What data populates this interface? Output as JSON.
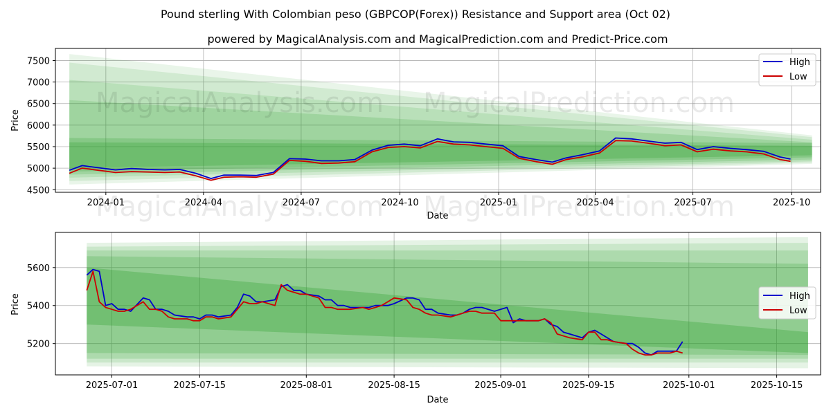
{
  "title": "Pound sterling With Colombian peso (GBPCOP(Forex)) Resistance and Support area (Oct 02)",
  "subtitle": "powered by MagicalAnalysis.com and MagicalPrediction.com and Predict-Price.com",
  "watermarks": [
    "MagicalAnalysis.com",
    "MagicalPrediction.com"
  ],
  "colors": {
    "high": "#0000cc",
    "low": "#cc0000",
    "band": "#2ca02c",
    "grid": "#b0b0b0"
  },
  "chart_data": [
    {
      "type": "line",
      "xlabel": "Date",
      "ylabel": "Price",
      "legend": [
        "High",
        "Low"
      ],
      "legend_position": "top-right",
      "grid": true,
      "xlim": [
        "2023-11-15",
        "2025-10-28"
      ],
      "ylim": [
        4440,
        7780
      ],
      "yticks": [
        4500,
        5000,
        5500,
        6000,
        6500,
        7000,
        7500
      ],
      "xticks": [
        {
          "date": "2024-01-01",
          "label": "2024-01"
        },
        {
          "date": "2024-04-01",
          "label": "2024-04"
        },
        {
          "date": "2024-07-01",
          "label": "2024-07"
        },
        {
          "date": "2024-10-01",
          "label": "2024-10"
        },
        {
          "date": "2025-01-01",
          "label": "2025-01"
        },
        {
          "date": "2025-04-01",
          "label": "2025-04"
        },
        {
          "date": "2025-07-01",
          "label": "2025-07"
        },
        {
          "date": "2025-10-01",
          "label": "2025-10"
        }
      ],
      "bands": [
        {
          "x": [
            "2023-11-28",
            "2025-10-20"
          ],
          "upper": [
            7650,
            5760
          ],
          "lower": [
            4620,
            5100
          ],
          "opacity": 0.1
        },
        {
          "x": [
            "2023-11-28",
            "2025-10-20"
          ],
          "upper": [
            7450,
            5720
          ],
          "lower": [
            4700,
            5130
          ],
          "opacity": 0.12
        },
        {
          "x": [
            "2023-11-28",
            "2025-10-20"
          ],
          "upper": [
            7050,
            5660
          ],
          "lower": [
            4780,
            5160
          ],
          "opacity": 0.14
        },
        {
          "x": [
            "2023-11-28",
            "2025-10-20"
          ],
          "upper": [
            6580,
            5600
          ],
          "lower": [
            4850,
            5200
          ],
          "opacity": 0.18
        },
        {
          "x": [
            "2023-11-28",
            "2025-10-20"
          ],
          "upper": [
            5700,
            5580
          ],
          "lower": [
            4920,
            5250
          ],
          "opacity": 0.22
        },
        {
          "x": [
            "2023-11-28",
            "2025-10-20"
          ],
          "upper": [
            5600,
            5520
          ],
          "lower": [
            5000,
            5300
          ],
          "opacity": 0.26
        }
      ],
      "series": [
        {
          "name": "High",
          "x": [
            "2023-11-28",
            "2023-12-10",
            "2023-12-25",
            "2024-01-10",
            "2024-01-25",
            "2024-02-10",
            "2024-02-25",
            "2024-03-10",
            "2024-03-25",
            "2024-04-08",
            "2024-04-20",
            "2024-05-05",
            "2024-05-20",
            "2024-06-05",
            "2024-06-20",
            "2024-07-05",
            "2024-07-20",
            "2024-08-05",
            "2024-08-20",
            "2024-09-05",
            "2024-09-20",
            "2024-10-05",
            "2024-10-20",
            "2024-11-05",
            "2024-11-20",
            "2024-12-05",
            "2024-12-20",
            "2025-01-05",
            "2025-01-20",
            "2025-02-05",
            "2025-02-20",
            "2025-03-05",
            "2025-03-20",
            "2025-04-05",
            "2025-04-20",
            "2025-05-05",
            "2025-05-20",
            "2025-06-05",
            "2025-06-20",
            "2025-07-05",
            "2025-07-20",
            "2025-08-05",
            "2025-08-20",
            "2025-09-05",
            "2025-09-20",
            "2025-09-30"
          ],
          "values": [
            4950,
            5060,
            5010,
            4960,
            4990,
            4970,
            4960,
            4970,
            4880,
            4760,
            4840,
            4840,
            4830,
            4900,
            5220,
            5210,
            5170,
            5170,
            5200,
            5420,
            5530,
            5560,
            5520,
            5680,
            5610,
            5600,
            5560,
            5520,
            5270,
            5200,
            5140,
            5240,
            5310,
            5400,
            5700,
            5680,
            5630,
            5580,
            5600,
            5430,
            5500,
            5460,
            5430,
            5390,
            5260,
            5210
          ]
        },
        {
          "name": "Low",
          "x": [
            "2023-11-28",
            "2023-12-10",
            "2023-12-25",
            "2024-01-10",
            "2024-01-25",
            "2024-02-10",
            "2024-02-25",
            "2024-03-10",
            "2024-03-25",
            "2024-04-08",
            "2024-04-20",
            "2024-05-05",
            "2024-05-20",
            "2024-06-05",
            "2024-06-20",
            "2024-07-05",
            "2024-07-20",
            "2024-08-05",
            "2024-08-20",
            "2024-09-05",
            "2024-09-20",
            "2024-10-05",
            "2024-10-20",
            "2024-11-05",
            "2024-11-20",
            "2024-12-05",
            "2024-12-20",
            "2025-01-05",
            "2025-01-20",
            "2025-02-05",
            "2025-02-20",
            "2025-03-05",
            "2025-03-20",
            "2025-04-05",
            "2025-04-20",
            "2025-05-05",
            "2025-05-20",
            "2025-06-05",
            "2025-06-20",
            "2025-07-05",
            "2025-07-20",
            "2025-08-05",
            "2025-08-20",
            "2025-09-05",
            "2025-09-20",
            "2025-09-30"
          ],
          "values": [
            4880,
            5000,
            4950,
            4900,
            4920,
            4910,
            4900,
            4910,
            4820,
            4720,
            4790,
            4800,
            4790,
            4860,
            5180,
            5160,
            5110,
            5120,
            5150,
            5380,
            5480,
            5500,
            5470,
            5620,
            5560,
            5540,
            5500,
            5460,
            5230,
            5150,
            5090,
            5200,
            5260,
            5350,
            5640,
            5630,
            5580,
            5520,
            5540,
            5380,
            5440,
            5400,
            5380,
            5330,
            5200,
            5160
          ]
        }
      ]
    },
    {
      "type": "line",
      "xlabel": "Date",
      "ylabel": "Price",
      "legend": [
        "High",
        "Low"
      ],
      "legend_position": "center-right",
      "grid": true,
      "xlim": [
        "2025-06-22",
        "2025-10-22"
      ],
      "ylim": [
        5035,
        5785
      ],
      "yticks": [
        5200,
        5400,
        5600
      ],
      "xticks": [
        {
          "date": "2025-07-01",
          "label": "2025-07-01"
        },
        {
          "date": "2025-07-15",
          "label": "2025-07-15"
        },
        {
          "date": "2025-08-01",
          "label": "2025-08-01"
        },
        {
          "date": "2025-08-15",
          "label": "2025-08-15"
        },
        {
          "date": "2025-09-01",
          "label": "2025-09-01"
        },
        {
          "date": "2025-09-15",
          "label": "2025-09-15"
        },
        {
          "date": "2025-10-01",
          "label": "2025-10-01"
        },
        {
          "date": "2025-10-15",
          "label": "2025-10-15"
        }
      ],
      "bands": [
        {
          "x": [
            "2025-06-27",
            "2025-10-20"
          ],
          "upper": [
            5730,
            5760
          ],
          "lower": [
            5080,
            5070
          ],
          "opacity": 0.12
        },
        {
          "x": [
            "2025-06-27",
            "2025-10-20"
          ],
          "upper": [
            5710,
            5730
          ],
          "lower": [
            5100,
            5100
          ],
          "opacity": 0.14
        },
        {
          "x": [
            "2025-06-27",
            "2025-10-20"
          ],
          "upper": [
            5690,
            5690
          ],
          "lower": [
            5120,
            5120
          ],
          "opacity": 0.18
        },
        {
          "x": [
            "2025-06-27",
            "2025-10-20"
          ],
          "upper": [
            5660,
            5620
          ],
          "lower": [
            5150,
            5140
          ],
          "opacity": 0.22
        },
        {
          "x": [
            "2025-06-27",
            "2025-10-20"
          ],
          "upper": [
            5600,
            5260
          ],
          "lower": [
            5300,
            5150
          ],
          "opacity": 0.3
        }
      ],
      "series": [
        {
          "name": "High",
          "x": [
            "2025-06-27",
            "2025-06-28",
            "2025-06-29",
            "2025-06-30",
            "2025-07-01",
            "2025-07-02",
            "2025-07-03",
            "2025-07-04",
            "2025-07-06",
            "2025-07-07",
            "2025-07-08",
            "2025-07-09",
            "2025-07-10",
            "2025-07-11",
            "2025-07-13",
            "2025-07-14",
            "2025-07-15",
            "2025-07-16",
            "2025-07-17",
            "2025-07-18",
            "2025-07-20",
            "2025-07-21",
            "2025-07-22",
            "2025-07-23",
            "2025-07-24",
            "2025-07-25",
            "2025-07-27",
            "2025-07-28",
            "2025-07-29",
            "2025-07-30",
            "2025-07-31",
            "2025-08-01",
            "2025-08-03",
            "2025-08-04",
            "2025-08-05",
            "2025-08-06",
            "2025-08-07",
            "2025-08-08",
            "2025-08-10",
            "2025-08-11",
            "2025-08-12",
            "2025-08-13",
            "2025-08-14",
            "2025-08-15",
            "2025-08-17",
            "2025-08-18",
            "2025-08-19",
            "2025-08-20",
            "2025-08-21",
            "2025-08-22",
            "2025-08-24",
            "2025-08-25",
            "2025-08-26",
            "2025-08-27",
            "2025-08-28",
            "2025-08-29",
            "2025-08-31",
            "2025-09-01",
            "2025-09-02",
            "2025-09-03",
            "2025-09-04",
            "2025-09-05",
            "2025-09-07",
            "2025-09-08",
            "2025-09-09",
            "2025-09-10",
            "2025-09-11",
            "2025-09-12",
            "2025-09-14",
            "2025-09-15",
            "2025-09-16",
            "2025-09-17",
            "2025-09-18",
            "2025-09-19",
            "2025-09-21",
            "2025-09-22",
            "2025-09-23",
            "2025-09-24",
            "2025-09-25",
            "2025-09-26",
            "2025-09-28",
            "2025-09-29",
            "2025-09-30"
          ],
          "values": [
            5560,
            5590,
            5580,
            5400,
            5410,
            5380,
            5380,
            5370,
            5440,
            5430,
            5380,
            5380,
            5370,
            5350,
            5340,
            5340,
            5330,
            5350,
            5350,
            5340,
            5350,
            5390,
            5460,
            5450,
            5420,
            5420,
            5430,
            5500,
            5510,
            5480,
            5480,
            5460,
            5450,
            5430,
            5430,
            5400,
            5400,
            5390,
            5390,
            5390,
            5400,
            5400,
            5400,
            5410,
            5440,
            5440,
            5430,
            5380,
            5380,
            5360,
            5350,
            5350,
            5360,
            5380,
            5390,
            5390,
            5370,
            5380,
            5390,
            5310,
            5330,
            5320,
            5320,
            5330,
            5300,
            5290,
            5260,
            5250,
            5230,
            5260,
            5270,
            5250,
            5230,
            5210,
            5200,
            5200,
            5180,
            5150,
            5140,
            5160,
            5160,
            5160,
            5210
          ]
        },
        {
          "name": "Low",
          "x": [
            "2025-06-27",
            "2025-06-28",
            "2025-06-29",
            "2025-06-30",
            "2025-07-01",
            "2025-07-02",
            "2025-07-03",
            "2025-07-04",
            "2025-07-06",
            "2025-07-07",
            "2025-07-08",
            "2025-07-09",
            "2025-07-10",
            "2025-07-11",
            "2025-07-13",
            "2025-07-14",
            "2025-07-15",
            "2025-07-16",
            "2025-07-17",
            "2025-07-18",
            "2025-07-20",
            "2025-07-21",
            "2025-07-22",
            "2025-07-23",
            "2025-07-24",
            "2025-07-25",
            "2025-07-27",
            "2025-07-28",
            "2025-07-29",
            "2025-07-30",
            "2025-07-31",
            "2025-08-01",
            "2025-08-03",
            "2025-08-04",
            "2025-08-05",
            "2025-08-06",
            "2025-08-07",
            "2025-08-08",
            "2025-08-10",
            "2025-08-11",
            "2025-08-12",
            "2025-08-13",
            "2025-08-14",
            "2025-08-15",
            "2025-08-17",
            "2025-08-18",
            "2025-08-19",
            "2025-08-20",
            "2025-08-21",
            "2025-08-22",
            "2025-08-24",
            "2025-08-25",
            "2025-08-26",
            "2025-08-27",
            "2025-08-28",
            "2025-08-29",
            "2025-08-31",
            "2025-09-01",
            "2025-09-02",
            "2025-09-03",
            "2025-09-04",
            "2025-09-05",
            "2025-09-07",
            "2025-09-08",
            "2025-09-09",
            "2025-09-10",
            "2025-09-11",
            "2025-09-12",
            "2025-09-14",
            "2025-09-15",
            "2025-09-16",
            "2025-09-17",
            "2025-09-18",
            "2025-09-19",
            "2025-09-21",
            "2025-09-22",
            "2025-09-23",
            "2025-09-24",
            "2025-09-25",
            "2025-09-26",
            "2025-09-28",
            "2025-09-29",
            "2025-09-30"
          ],
          "values": [
            5480,
            5580,
            5420,
            5390,
            5380,
            5370,
            5370,
            5380,
            5420,
            5380,
            5380,
            5370,
            5340,
            5330,
            5330,
            5320,
            5320,
            5340,
            5340,
            5330,
            5340,
            5380,
            5420,
            5410,
            5410,
            5420,
            5400,
            5510,
            5480,
            5470,
            5460,
            5460,
            5440,
            5390,
            5390,
            5380,
            5380,
            5380,
            5390,
            5380,
            5390,
            5400,
            5420,
            5440,
            5430,
            5390,
            5380,
            5360,
            5350,
            5350,
            5340,
            5350,
            5360,
            5370,
            5370,
            5360,
            5360,
            5320,
            5320,
            5320,
            5320,
            5320,
            5320,
            5330,
            5310,
            5250,
            5240,
            5230,
            5220,
            5260,
            5260,
            5220,
            5220,
            5210,
            5200,
            5170,
            5150,
            5140,
            5140,
            5150,
            5150,
            5160,
            5150
          ]
        }
      ]
    }
  ]
}
